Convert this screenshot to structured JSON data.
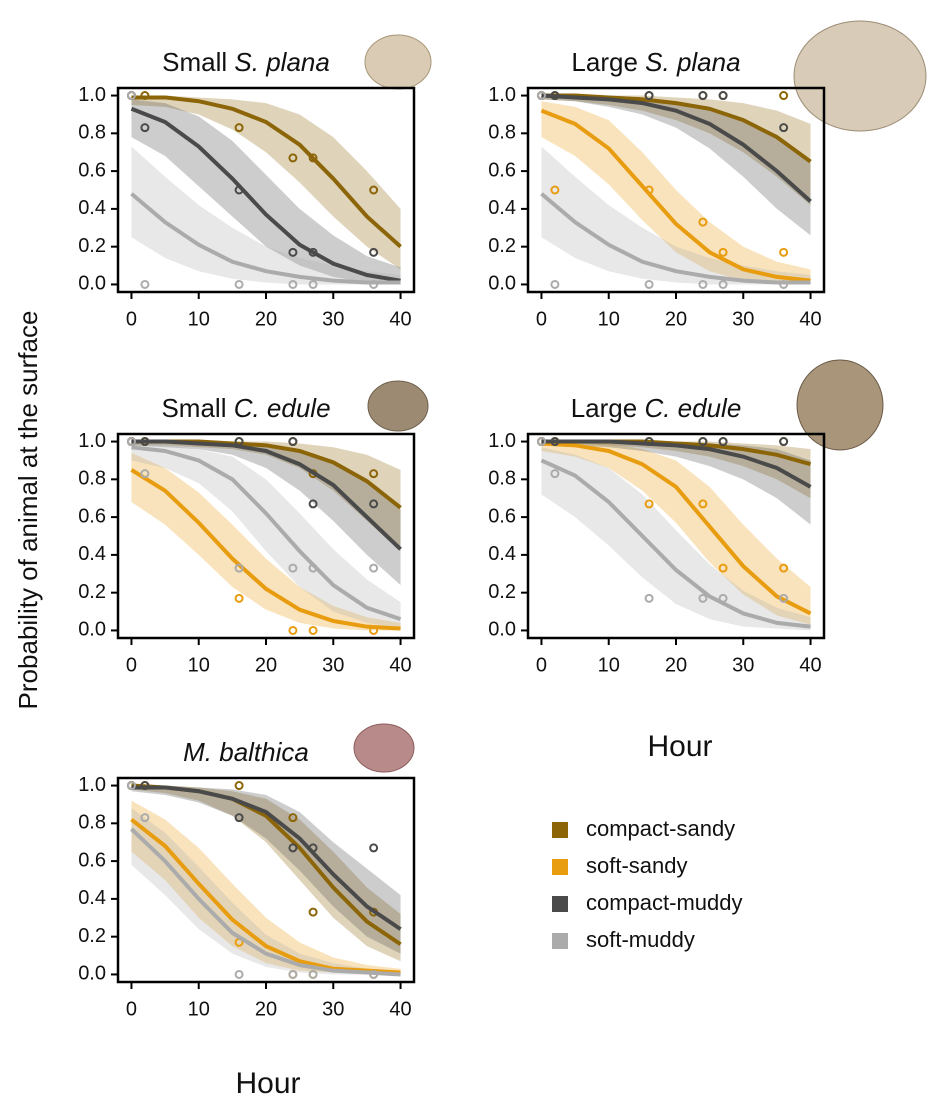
{
  "ylabel": "Probability of animal at the surface",
  "xlabel": "Hour",
  "chart_data": [
    {
      "type": "line",
      "title_prefix": "Small",
      "title_species": "S. plana",
      "x": [
        0,
        5,
        10,
        15,
        20,
        25,
        30,
        35,
        40
      ],
      "points_x": [
        0,
        2,
        16,
        24,
        27,
        36
      ],
      "xlim": [
        -2,
        42
      ],
      "ylim": [
        -0.04,
        1.04
      ],
      "xticks": [
        0,
        10,
        20,
        30,
        40
      ],
      "yticks": [
        {
          "value": 0,
          "label": "0.0"
        },
        {
          "value": 0.2,
          "label": "0.2"
        },
        {
          "value": 0.4,
          "label": "0.4"
        },
        {
          "value": 0.6,
          "label": "0.6"
        },
        {
          "value": 0.8,
          "label": "0.8"
        },
        {
          "value": 1,
          "label": "1.0"
        }
      ],
      "series": [
        {
          "name": "compact-sandy",
          "color": "#8b6508",
          "values": [
            0.99,
            0.99,
            0.97,
            0.93,
            0.86,
            0.74,
            0.56,
            0.36,
            0.2
          ],
          "lower": [
            0.95,
            0.94,
            0.9,
            0.82,
            0.7,
            0.54,
            0.36,
            0.2,
            0.08
          ],
          "upper": [
            1,
            1,
            0.99,
            0.98,
            0.96,
            0.9,
            0.78,
            0.6,
            0.4
          ],
          "points": [
            1,
            1,
            0.83,
            0.67,
            0.67,
            0.5
          ]
        },
        {
          "name": "compact-muddy",
          "color": "#4a4a4a",
          "values": [
            0.93,
            0.86,
            0.73,
            0.56,
            0.37,
            0.21,
            0.11,
            0.05,
            0.02
          ],
          "lower": [
            0.78,
            0.68,
            0.52,
            0.36,
            0.2,
            0.1,
            0.04,
            0.01,
            0
          ],
          "upper": [
            0.98,
            0.96,
            0.89,
            0.76,
            0.58,
            0.4,
            0.26,
            0.15,
            0.09
          ],
          "points": [
            1,
            0.83,
            0.5,
            0.17,
            0.17,
            0.17
          ]
        },
        {
          "name": "soft-muddy",
          "color": "#ababab",
          "values": [
            0.48,
            0.33,
            0.21,
            0.12,
            0.07,
            0.04,
            0.02,
            0.01,
            0.01
          ],
          "lower": [
            0.25,
            0.14,
            0.07,
            0.03,
            0.01,
            0,
            0,
            0,
            0
          ],
          "upper": [
            0.73,
            0.57,
            0.42,
            0.3,
            0.2,
            0.14,
            0.1,
            0.07,
            0.05
          ],
          "points": [
            1,
            0,
            0,
            0,
            0,
            0
          ]
        }
      ]
    },
    {
      "type": "line",
      "title_prefix": "Large",
      "title_species": "S. plana",
      "x": [
        0,
        5,
        10,
        15,
        20,
        25,
        30,
        35,
        40
      ],
      "points_x": [
        0,
        2,
        16,
        24,
        27,
        36
      ],
      "xlim": [
        -2,
        42
      ],
      "ylim": [
        -0.04,
        1.04
      ],
      "xticks": [
        0,
        10,
        20,
        30,
        40
      ],
      "yticks": [
        {
          "value": 0,
          "label": "0.0"
        },
        {
          "value": 0.2,
          "label": "0.2"
        },
        {
          "value": 0.4,
          "label": "0.4"
        },
        {
          "value": 0.6,
          "label": "0.6"
        },
        {
          "value": 0.8,
          "label": "0.8"
        },
        {
          "value": 1,
          "label": "1.0"
        }
      ],
      "series": [
        {
          "name": "compact-sandy",
          "color": "#8b6508",
          "values": [
            1,
            1,
            0.99,
            0.98,
            0.96,
            0.93,
            0.87,
            0.78,
            0.65
          ],
          "lower": [
            0.98,
            0.97,
            0.95,
            0.92,
            0.87,
            0.8,
            0.7,
            0.57,
            0.42
          ],
          "upper": [
            1,
            1,
            1,
            1,
            0.99,
            0.98,
            0.96,
            0.92,
            0.85
          ],
          "points": [
            1,
            1,
            1,
            1,
            1,
            1
          ]
        },
        {
          "name": "soft-sandy",
          "color": "#e89c0f",
          "values": [
            0.92,
            0.85,
            0.72,
            0.52,
            0.32,
            0.17,
            0.08,
            0.04,
            0.02
          ],
          "lower": [
            0.78,
            0.68,
            0.53,
            0.34,
            0.17,
            0.07,
            0.02,
            0.01,
            0
          ],
          "upper": [
            0.97,
            0.94,
            0.87,
            0.7,
            0.5,
            0.33,
            0.2,
            0.12,
            0.08
          ],
          "points": [
            1,
            0.5,
            0.5,
            0.33,
            0.17,
            0.17
          ]
        },
        {
          "name": "compact-muddy",
          "color": "#4a4a4a",
          "values": [
            1,
            0.99,
            0.98,
            0.96,
            0.92,
            0.85,
            0.74,
            0.6,
            0.44
          ],
          "lower": [
            0.98,
            0.97,
            0.94,
            0.9,
            0.83,
            0.72,
            0.57,
            0.4,
            0.26
          ],
          "upper": [
            1,
            1,
            1,
            0.99,
            0.97,
            0.94,
            0.88,
            0.78,
            0.64
          ],
          "points": [
            1,
            1,
            1,
            1,
            1,
            0.83
          ]
        },
        {
          "name": "soft-muddy",
          "color": "#ababab",
          "values": [
            0.48,
            0.33,
            0.21,
            0.12,
            0.07,
            0.04,
            0.02,
            0.01,
            0.01
          ],
          "lower": [
            0.25,
            0.14,
            0.07,
            0.03,
            0.01,
            0,
            0,
            0,
            0
          ],
          "upper": [
            0.73,
            0.57,
            0.42,
            0.3,
            0.2,
            0.14,
            0.1,
            0.07,
            0.05
          ],
          "points": [
            1,
            0,
            0,
            0,
            0,
            0
          ]
        }
      ]
    },
    {
      "type": "line",
      "title_prefix": "Small",
      "title_species": "C. edule",
      "x": [
        0,
        5,
        10,
        15,
        20,
        25,
        30,
        35,
        40
      ],
      "points_x": [
        0,
        2,
        16,
        24,
        27,
        36
      ],
      "xlim": [
        -2,
        42
      ],
      "ylim": [
        -0.04,
        1.04
      ],
      "xticks": [
        0,
        10,
        20,
        30,
        40
      ],
      "yticks": [
        {
          "value": 0,
          "label": "0.0"
        },
        {
          "value": 0.2,
          "label": "0.2"
        },
        {
          "value": 0.4,
          "label": "0.4"
        },
        {
          "value": 0.6,
          "label": "0.6"
        },
        {
          "value": 0.8,
          "label": "0.8"
        },
        {
          "value": 1,
          "label": "1.0"
        }
      ],
      "series": [
        {
          "name": "compact-sandy",
          "color": "#8b6508",
          "values": [
            1,
            1,
            1,
            0.99,
            0.98,
            0.95,
            0.89,
            0.79,
            0.65
          ],
          "lower": [
            0.98,
            0.98,
            0.97,
            0.96,
            0.93,
            0.86,
            0.74,
            0.58,
            0.42
          ],
          "upper": [
            1,
            1,
            1,
            1,
            1,
            0.99,
            0.97,
            0.93,
            0.85
          ],
          "points": [
            1,
            1,
            1,
            1,
            0.83,
            0.83
          ]
        },
        {
          "name": "soft-sandy",
          "color": "#e89c0f",
          "values": [
            0.85,
            0.74,
            0.57,
            0.38,
            0.22,
            0.11,
            0.05,
            0.02,
            0.01
          ],
          "lower": [
            0.68,
            0.56,
            0.4,
            0.23,
            0.11,
            0.04,
            0.01,
            0,
            0
          ],
          "upper": [
            0.94,
            0.86,
            0.73,
            0.56,
            0.38,
            0.23,
            0.13,
            0.07,
            0.04
          ],
          "points": [
            1,
            1,
            0.17,
            0,
            0,
            0
          ]
        },
        {
          "name": "compact-muddy",
          "color": "#4a4a4a",
          "values": [
            1,
            1,
            0.99,
            0.98,
            0.95,
            0.88,
            0.77,
            0.6,
            0.43
          ],
          "lower": [
            0.98,
            0.97,
            0.96,
            0.93,
            0.86,
            0.74,
            0.58,
            0.4,
            0.24
          ],
          "upper": [
            1,
            1,
            1,
            1,
            0.99,
            0.96,
            0.9,
            0.8,
            0.64
          ],
          "points": [
            1,
            1,
            1,
            1,
            0.67,
            0.67
          ]
        },
        {
          "name": "soft-muddy",
          "color": "#ababab",
          "values": [
            0.97,
            0.95,
            0.9,
            0.8,
            0.62,
            0.42,
            0.24,
            0.12,
            0.06
          ],
          "lower": [
            0.9,
            0.86,
            0.78,
            0.63,
            0.42,
            0.23,
            0.1,
            0.04,
            0.01
          ],
          "upper": [
            0.99,
            0.98,
            0.96,
            0.92,
            0.8,
            0.62,
            0.43,
            0.27,
            0.15
          ],
          "points": [
            1,
            0.83,
            0.33,
            0.33,
            0.33,
            0.33
          ]
        }
      ]
    },
    {
      "type": "line",
      "title_prefix": "Large",
      "title_species": "C. edule",
      "x": [
        0,
        5,
        10,
        15,
        20,
        25,
        30,
        35,
        40
      ],
      "points_x": [
        0,
        2,
        16,
        24,
        27,
        36
      ],
      "xlim": [
        -2,
        42
      ],
      "ylim": [
        -0.04,
        1.04
      ],
      "xticks": [
        0,
        10,
        20,
        30,
        40
      ],
      "yticks": [
        {
          "value": 0,
          "label": "0.0"
        },
        {
          "value": 0.2,
          "label": "0.2"
        },
        {
          "value": 0.4,
          "label": "0.4"
        },
        {
          "value": 0.6,
          "label": "0.6"
        },
        {
          "value": 0.8,
          "label": "0.8"
        },
        {
          "value": 1,
          "label": "1.0"
        }
      ],
      "series": [
        {
          "name": "compact-sandy",
          "color": "#8b6508",
          "values": [
            1,
            1,
            1,
            1,
            0.99,
            0.98,
            0.96,
            0.93,
            0.88
          ],
          "lower": [
            0.99,
            0.99,
            0.98,
            0.97,
            0.95,
            0.92,
            0.87,
            0.8,
            0.7
          ],
          "upper": [
            1,
            1,
            1,
            1,
            1,
            1,
            0.99,
            0.98,
            0.96
          ],
          "points": [
            1,
            1,
            1,
            1,
            1,
            1
          ]
        },
        {
          "name": "soft-sandy",
          "color": "#e89c0f",
          "values": [
            0.99,
            0.98,
            0.95,
            0.88,
            0.76,
            0.55,
            0.34,
            0.18,
            0.09
          ],
          "lower": [
            0.95,
            0.92,
            0.86,
            0.74,
            0.57,
            0.36,
            0.19,
            0.08,
            0.03
          ],
          "upper": [
            1,
            1,
            0.99,
            0.96,
            0.9,
            0.76,
            0.56,
            0.38,
            0.23
          ],
          "points": [
            1,
            1,
            0.67,
            0.67,
            0.33,
            0.33
          ]
        },
        {
          "name": "compact-muddy",
          "color": "#4a4a4a",
          "values": [
            1,
            1,
            1,
            0.99,
            0.98,
            0.96,
            0.92,
            0.86,
            0.76
          ],
          "lower": [
            0.99,
            0.98,
            0.97,
            0.95,
            0.92,
            0.87,
            0.8,
            0.7,
            0.56
          ],
          "upper": [
            1,
            1,
            1,
            1,
            1,
            0.99,
            0.98,
            0.96,
            0.9
          ],
          "points": [
            1,
            1,
            1,
            1,
            1,
            1
          ]
        },
        {
          "name": "soft-muddy",
          "color": "#ababab",
          "values": [
            0.9,
            0.82,
            0.68,
            0.5,
            0.32,
            0.18,
            0.09,
            0.04,
            0.02
          ],
          "lower": [
            0.72,
            0.6,
            0.45,
            0.28,
            0.14,
            0.06,
            0.02,
            0.01,
            0
          ],
          "upper": [
            0.97,
            0.93,
            0.86,
            0.72,
            0.53,
            0.35,
            0.21,
            0.12,
            0.07
          ],
          "points": [
            1,
            0.83,
            0.17,
            0.17,
            0.17,
            0.17
          ]
        }
      ]
    },
    {
      "type": "line",
      "title_prefix": "",
      "title_species": "M. balthica",
      "x": [
        0,
        5,
        10,
        15,
        20,
        25,
        30,
        35,
        40
      ],
      "points_x": [
        0,
        2,
        16,
        24,
        27,
        36
      ],
      "xlim": [
        -2,
        42
      ],
      "ylim": [
        -0.04,
        1.04
      ],
      "xticks": [
        0,
        10,
        20,
        30,
        40
      ],
      "yticks": [
        {
          "value": 0,
          "label": "0.0"
        },
        {
          "value": 0.2,
          "label": "0.2"
        },
        {
          "value": 0.4,
          "label": "0.4"
        },
        {
          "value": 0.6,
          "label": "0.6"
        },
        {
          "value": 0.8,
          "label": "0.8"
        },
        {
          "value": 1,
          "label": "1.0"
        }
      ],
      "series": [
        {
          "name": "compact-sandy",
          "color": "#8b6508",
          "values": [
            1,
            0.99,
            0.97,
            0.93,
            0.84,
            0.67,
            0.46,
            0.28,
            0.16
          ],
          "lower": [
            0.98,
            0.96,
            0.92,
            0.84,
            0.7,
            0.5,
            0.3,
            0.15,
            0.07
          ],
          "upper": [
            1,
            1,
            0.99,
            0.97,
            0.93,
            0.82,
            0.65,
            0.46,
            0.32
          ],
          "points": [
            1,
            1,
            1,
            0.83,
            0.33,
            0.33
          ]
        },
        {
          "name": "soft-sandy",
          "color": "#e89c0f",
          "values": [
            0.82,
            0.68,
            0.48,
            0.29,
            0.15,
            0.07,
            0.03,
            0.02,
            0.01
          ],
          "lower": [
            0.65,
            0.5,
            0.3,
            0.15,
            0.06,
            0.02,
            0.01,
            0,
            0
          ],
          "upper": [
            0.92,
            0.82,
            0.67,
            0.48,
            0.3,
            0.17,
            0.09,
            0.05,
            0.03
          ],
          "points": [
            1,
            1,
            0.17,
            0,
            0,
            0
          ]
        },
        {
          "name": "compact-muddy",
          "color": "#4a4a4a",
          "values": [
            0.99,
            0.99,
            0.97,
            0.93,
            0.86,
            0.72,
            0.53,
            0.36,
            0.24
          ],
          "lower": [
            0.97,
            0.95,
            0.91,
            0.84,
            0.72,
            0.55,
            0.36,
            0.2,
            0.11
          ],
          "upper": [
            1,
            1,
            0.99,
            0.98,
            0.95,
            0.86,
            0.7,
            0.56,
            0.42
          ],
          "points": [
            1,
            1,
            0.83,
            0.67,
            0.67,
            0.67
          ]
        },
        {
          "name": "soft-muddy",
          "color": "#ababab",
          "values": [
            0.77,
            0.6,
            0.4,
            0.22,
            0.11,
            0.05,
            0.02,
            0.01,
            0
          ],
          "lower": [
            0.58,
            0.42,
            0.24,
            0.11,
            0.04,
            0.01,
            0,
            0,
            0
          ],
          "upper": [
            0.88,
            0.75,
            0.57,
            0.38,
            0.21,
            0.11,
            0.06,
            0.03,
            0.02
          ],
          "points": [
            1,
            0.83,
            0,
            0,
            0,
            0
          ]
        }
      ]
    }
  ]
}
